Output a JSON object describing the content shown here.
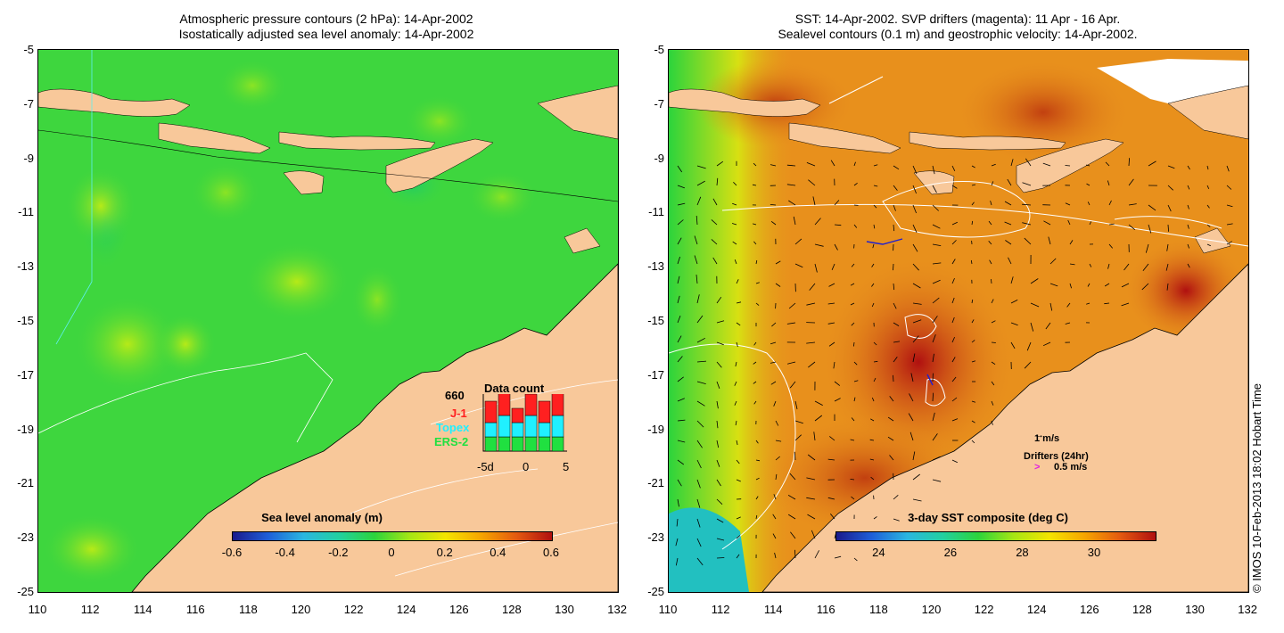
{
  "left_panel": {
    "title_line1": "Atmospheric pressure contours (2 hPa): 14-Apr-2002",
    "title_line2": "Isostatically adjusted sea level anomaly: 14-Apr-2002",
    "colorbar_title": "Sea level anomaly (m)",
    "colorbar_ticks": [
      "-0.6",
      "-0.4",
      "-0.2",
      "0",
      "0.2",
      "0.4",
      "0.6"
    ],
    "colorbar_stops": [
      "#1a1a8c",
      "#1e5fd8",
      "#2ab6e0",
      "#22d0a0",
      "#2cd43c",
      "#a6e614",
      "#f4e400",
      "#f6a500",
      "#e45a10",
      "#b01010"
    ],
    "data_count": {
      "title": "Data count",
      "total": "660",
      "series": [
        "J-1",
        "Topex",
        "ERS-2"
      ],
      "series_colors": [
        "#ff2020",
        "#20f0ff",
        "#20e040"
      ],
      "x_labels": [
        "-5d",
        "0",
        "5"
      ],
      "bars": [
        {
          "ers": 2,
          "topex": 2,
          "j1": 3
        },
        {
          "ers": 2,
          "topex": 3,
          "j1": 4
        },
        {
          "ers": 2,
          "topex": 2,
          "j1": 2
        },
        {
          "ers": 2,
          "topex": 3,
          "j1": 3
        },
        {
          "ers": 2,
          "topex": 2,
          "j1": 3
        },
        {
          "ers": 2,
          "topex": 3,
          "j1": 4
        }
      ]
    }
  },
  "right_panel": {
    "title_line1": "SST: 14-Apr-2002. SVP drifters (magenta): 11 Apr - 16 Apr.",
    "title_line2": "Sealevel contours (0.1 m) and geostrophic velocity: 14-Apr-2002.",
    "colorbar_title": "3-day SST composite (deg C)",
    "colorbar_ticks": [
      "24",
      "26",
      "28",
      "30"
    ],
    "colorbar_stops": [
      "#1a1a8c",
      "#1e5fd8",
      "#2ab6e0",
      "#22d0a0",
      "#2cd43c",
      "#a6e614",
      "#f4e400",
      "#f6a500",
      "#e45a10",
      "#b01010"
    ],
    "vector_scale_label": "1 m/s",
    "drifter_title": "Drifters (24hr)",
    "drifter_scale_label": "0.5 m/s"
  },
  "axes": {
    "lon_ticks": [
      "110",
      "112",
      "114",
      "116",
      "118",
      "120",
      "122",
      "124",
      "126",
      "128",
      "130",
      "132"
    ],
    "lat_ticks": [
      "-5",
      "-7",
      "-9",
      "-11",
      "-13",
      "-15",
      "-17",
      "-19",
      "-21",
      "-23",
      "-25"
    ]
  },
  "copyright": "© IMOS 10-Feb-2013 18:02 Hobart Time",
  "colors": {
    "land": "#f8c89a",
    "sea_green": "#3ed63e",
    "sst_orange": "#e8901c"
  }
}
